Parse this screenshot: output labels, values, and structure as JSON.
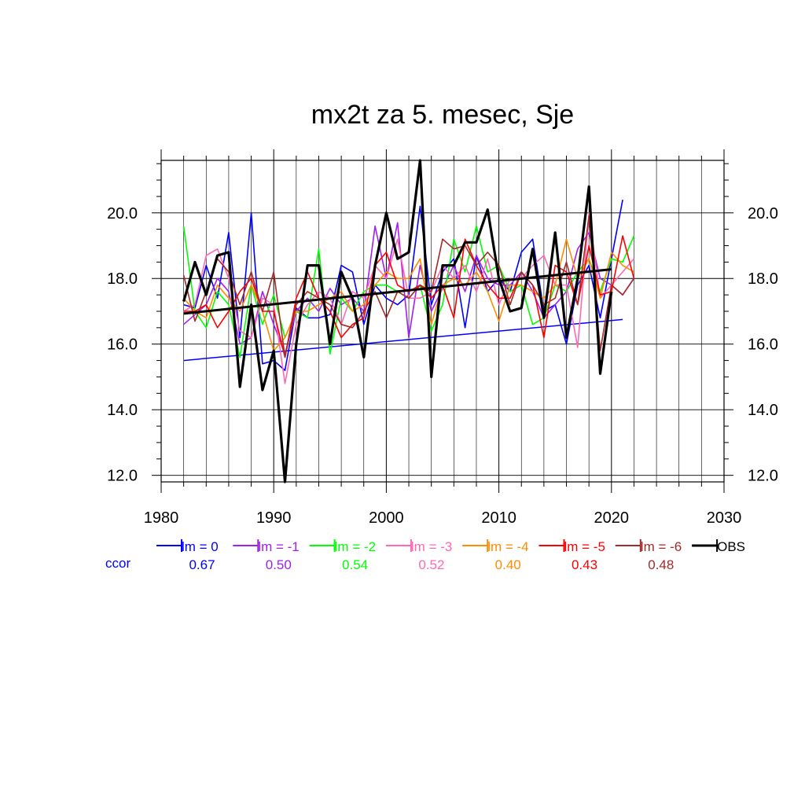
{
  "chart_data": {
    "type": "line",
    "title": "mx2t za 5. mesec, Sje",
    "xlabel": "",
    "ylabel": "",
    "xlim": [
      1980,
      2030
    ],
    "ylim": [
      11.8,
      21.6
    ],
    "xticks": [
      1980,
      1990,
      2000,
      2010,
      2020,
      2030
    ],
    "xtick_labels": [
      "1980",
      "1990",
      "2000",
      "2010",
      "2020",
      "2030"
    ],
    "yticks": [
      12,
      14,
      16,
      18,
      20
    ],
    "ytick_labels": [
      "12.0",
      "14.0",
      "16.0",
      "18.0",
      "20.0"
    ],
    "grid": true,
    "legend_position": "bottom",
    "corr_label": "ccor",
    "corr_color": "#0000ff",
    "series": [
      {
        "name": "lm = 0",
        "color": "#0000ff",
        "width": 1.6,
        "corr": "0.67",
        "start": 1982,
        "values": [
          17.2,
          17.1,
          18.4,
          17.4,
          19.4,
          16.2,
          20.0,
          15.4,
          15.5,
          15.2,
          17.1,
          16.8,
          16.8,
          16.9,
          18.4,
          18.2,
          16.6,
          17.8,
          17.4,
          17.2,
          17.5,
          20.2,
          17.2,
          18.2,
          18.6,
          16.5,
          18.7,
          17.6,
          18.0,
          17.6,
          18.8,
          19.2,
          17.0,
          17.2,
          16.0,
          17.8,
          18.4,
          16.8,
          18.6,
          20.4
        ],
        "trend": {
          "x": [
            1982,
            2021
          ],
          "y": [
            15.5,
            16.75
          ]
        }
      },
      {
        "name": "lm = -1",
        "color": "#a020f0",
        "width": 1.6,
        "corr": "0.50",
        "start": 1982,
        "values": [
          16.6,
          16.9,
          17.2,
          18.0,
          17.6,
          16.0,
          16.2,
          17.6,
          16.6,
          15.7,
          17.0,
          17.4,
          17.0,
          17.7,
          17.2,
          17.4,
          17.0,
          19.6,
          18.0,
          19.7,
          16.2,
          18.4,
          17.0,
          17.7,
          18.4,
          17.6,
          18.7,
          18.0,
          17.8,
          17.8,
          18.2,
          17.6,
          16.8,
          17.2,
          17.6,
          18.9,
          19.4,
          18.0,
          17.8,
          17.5,
          18.0
        ]
      },
      {
        "name": "lm = -2",
        "color": "#00ff00",
        "width": 1.6,
        "corr": "0.54",
        "start": 1982,
        "values": [
          19.6,
          17.0,
          16.5,
          17.6,
          17.2,
          15.6,
          17.8,
          16.6,
          17.5,
          16.2,
          17.0,
          16.8,
          18.9,
          15.7,
          17.4,
          17.0,
          17.6,
          17.8,
          17.8,
          17.6,
          17.4,
          17.8,
          16.4,
          17.2,
          19.2,
          18.2,
          19.6,
          18.2,
          18.4,
          17.6,
          17.8,
          16.6,
          16.8,
          17.8,
          17.6,
          18.2,
          18.6,
          17.6,
          18.6,
          18.5,
          19.3
        ]
      },
      {
        "name": "lm = -3",
        "color": "#ff69b4",
        "width": 1.6,
        "corr": "0.52",
        "start": 1982,
        "values": [
          17.0,
          17.2,
          18.7,
          18.9,
          18.0,
          16.4,
          16.2,
          17.4,
          17.2,
          14.8,
          16.6,
          17.2,
          17.6,
          17.4,
          16.6,
          17.6,
          17.4,
          18.4,
          18.0,
          19.2,
          17.4,
          17.4,
          17.6,
          18.4,
          18.0,
          18.4,
          17.6,
          18.6,
          17.2,
          18.0,
          18.0,
          18.4,
          18.7,
          17.8,
          17.8,
          15.9,
          20.0,
          17.4,
          17.8,
          18.2,
          18.6
        ]
      },
      {
        "name": "lm = -4",
        "color": "#ff8c00",
        "width": 1.6,
        "corr": "0.40",
        "start": 1982,
        "values": [
          17.4,
          17.0,
          16.8,
          17.8,
          17.4,
          17.0,
          17.8,
          17.0,
          15.8,
          16.2,
          17.0,
          17.0,
          17.2,
          17.4,
          17.6,
          17.0,
          17.2,
          17.8,
          18.2,
          18.0,
          18.0,
          18.6,
          16.6,
          17.8,
          18.0,
          17.8,
          18.2,
          17.6,
          16.7,
          17.8,
          17.8,
          17.6,
          17.4,
          17.8,
          19.2,
          18.0,
          18.6,
          17.4,
          18.8,
          18.4,
          18.2
        ]
      },
      {
        "name": "lm = -5",
        "color": "#ff0000",
        "width": 1.6,
        "corr": "0.43",
        "start": 1982,
        "values": [
          17.0,
          17.0,
          17.2,
          16.5,
          17.0,
          17.6,
          18.0,
          17.0,
          17.0,
          15.6,
          17.4,
          18.2,
          17.4,
          17.0,
          16.2,
          16.6,
          16.8,
          18.4,
          18.8,
          17.8,
          17.6,
          17.8,
          17.4,
          17.8,
          16.8,
          19.2,
          18.4,
          17.8,
          17.4,
          17.4,
          18.2,
          17.8,
          16.2,
          18.4,
          18.2,
          17.2,
          19.0,
          17.5,
          17.6,
          19.3,
          18.0
        ]
      },
      {
        "name": "lm = -6",
        "color": "#a52a2a",
        "width": 1.6,
        "corr": "0.48",
        "start": 1982,
        "values": [
          18.1,
          16.7,
          17.6,
          18.6,
          18.2,
          17.2,
          18.2,
          17.0,
          18.2,
          15.6,
          17.2,
          17.6,
          17.4,
          17.2,
          16.6,
          16.5,
          17.0,
          17.6,
          16.8,
          17.6,
          17.4,
          17.8,
          17.6,
          19.2,
          18.9,
          19.0,
          18.4,
          18.8,
          18.4,
          17.2,
          18.2,
          17.8,
          17.2,
          17.4,
          18.5,
          17.2,
          19.9,
          15.8,
          17.8,
          17.5,
          18.0
        ]
      },
      {
        "name": "OBS",
        "color": "#000000",
        "width": 3.2,
        "corr": "",
        "start": 1982,
        "values": [
          17.3,
          18.5,
          17.5,
          18.7,
          18.8,
          14.7,
          17.2,
          14.6,
          15.8,
          11.8,
          16.0,
          18.4,
          18.4,
          16.0,
          18.2,
          17.4,
          15.6,
          18.4,
          20.0,
          18.6,
          18.8,
          21.6,
          15.0,
          18.4,
          18.4,
          19.1,
          19.1,
          20.1,
          18.0,
          17.0,
          17.1,
          18.9,
          16.8,
          19.4,
          16.2,
          18.0,
          20.8,
          15.1,
          17.6
        ],
        "trend": {
          "x": [
            1982,
            2020
          ],
          "y": [
            16.93,
            18.28
          ]
        }
      }
    ]
  }
}
